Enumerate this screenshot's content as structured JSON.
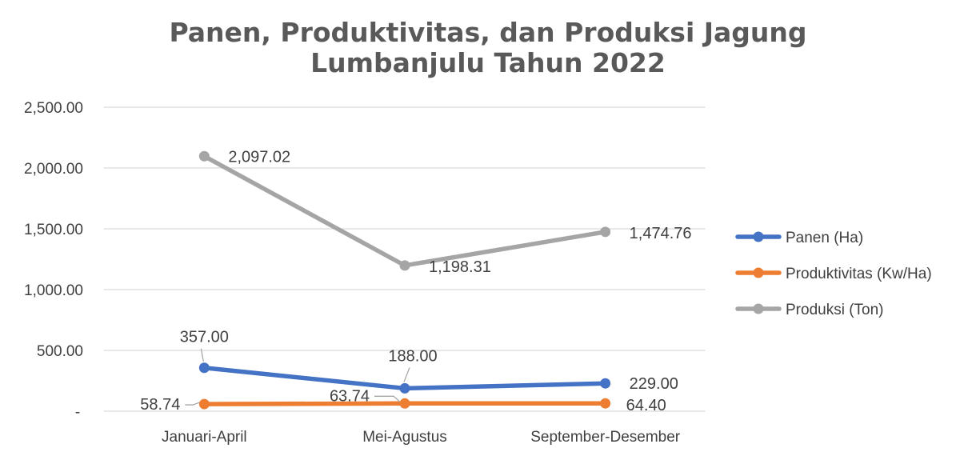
{
  "chart_data": {
    "type": "line",
    "title": [
      "Panen, Produktivitas, dan Produksi Jagung",
      "Lumbanjulu Tahun 2022"
    ],
    "categories": [
      "Januari-April",
      "Mei-Agustus",
      "September-Desember"
    ],
    "y_ticks": [
      "-",
      "500.00",
      "1,000.00",
      "1,500.00",
      "2,000.00",
      "2,500.00"
    ],
    "ylim": [
      0,
      2500
    ],
    "grid": true,
    "legend_position": "right",
    "series": [
      {
        "name": "Panen (Ha)",
        "color": "#4472c4",
        "values": [
          357.0,
          188.0,
          229.0
        ],
        "labels": [
          "357.00",
          "188.00",
          "229.00"
        ]
      },
      {
        "name": "Produktivitas (Kw/Ha)",
        "color": "#ed7d31",
        "values": [
          58.74,
          63.74,
          64.4
        ],
        "labels": [
          "58.74",
          "63.74",
          "64.40"
        ]
      },
      {
        "name": "Produksi (Ton)",
        "color": "#a5a5a5",
        "values": [
          2097.02,
          1198.31,
          1474.76
        ],
        "labels": [
          "2,097.02",
          "1,198.31",
          "1,474.76"
        ]
      }
    ]
  }
}
